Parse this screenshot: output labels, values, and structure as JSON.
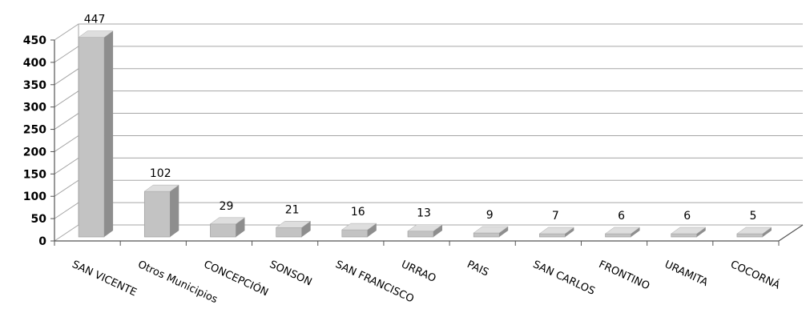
{
  "chart_data": {
    "type": "bar",
    "categories": [
      "SAN VICENTE",
      "Otros Municipios",
      "CONCEPCIÓN",
      "SONSON",
      "SAN FRANCISCO",
      "URRAO",
      "PAIS",
      "SAN CARLOS",
      "FRONTINO",
      "URAMITA",
      "COCORNÁ"
    ],
    "values": [
      447,
      102,
      29,
      21,
      16,
      13,
      9,
      7,
      6,
      6,
      5
    ],
    "ylim": [
      0,
      450
    ],
    "yticks": [
      0,
      50,
      100,
      150,
      200,
      250,
      300,
      350,
      400,
      450
    ],
    "grid": true,
    "style": "3d-bar",
    "colors": {
      "bar_front": "#c3c3c3",
      "bar_side": "#8e8e8e",
      "bar_top": "#dedede",
      "grid": "#a6a6a6",
      "wall": "#ffffff"
    }
  }
}
